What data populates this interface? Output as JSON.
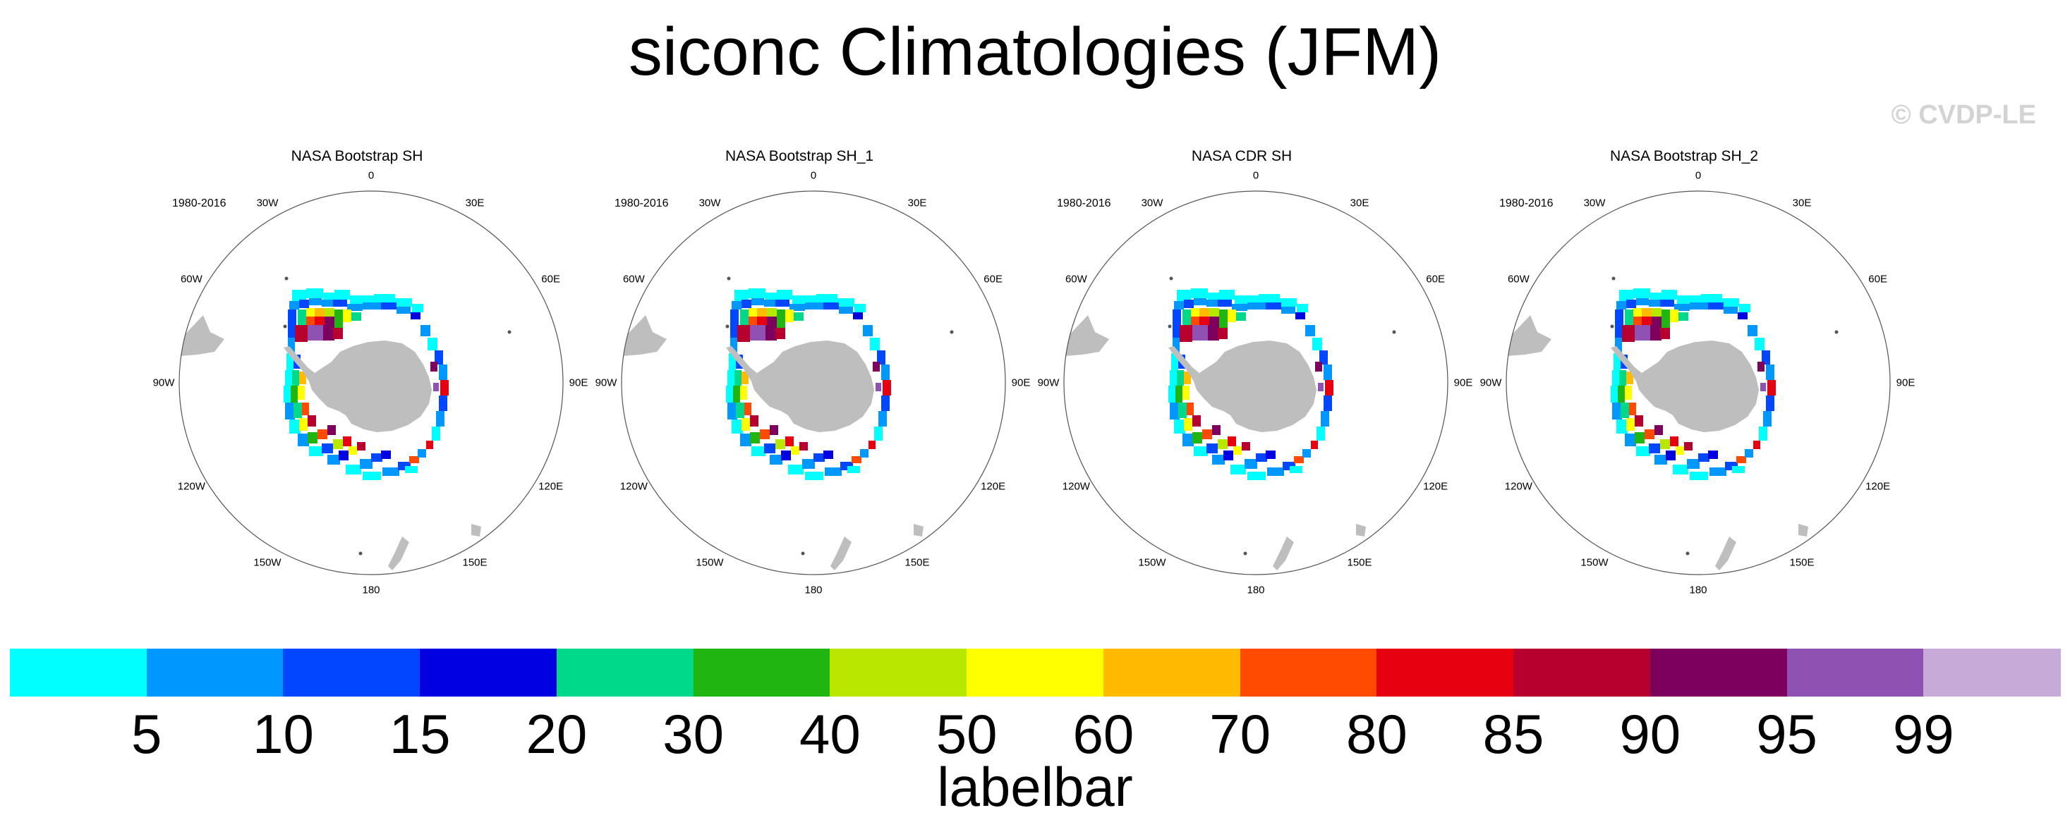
{
  "figure": {
    "title": "siconc Climatologies (JFM)",
    "watermark": "© CVDP-LE",
    "land_color": "#bebebe",
    "ocean_color": "#ffffff"
  },
  "panels": [
    {
      "title": "NASA Bootstrap SH",
      "period": "1980-2016"
    },
    {
      "title": "NASA Bootstrap SH_1",
      "period": "1980-2016"
    },
    {
      "title": "NASA CDR SH",
      "period": "1980-2016"
    },
    {
      "title": "NASA Bootstrap SH_2",
      "period": "1980-2016"
    }
  ],
  "lon_labels": {
    "l0": "0",
    "l30e": "30E",
    "l60e": "60E",
    "l90e": "90E",
    "l120e": "120E",
    "l150e": "150E",
    "l180": "180",
    "l150w": "150W",
    "l120w": "120W",
    "l90w": "90W",
    "l60w": "60W",
    "l30w": "30W"
  },
  "chart_data": {
    "type": "heatmap",
    "projection": "south polar stereographic",
    "variable": "siconc",
    "season": "JFM",
    "title": "siconc Climatologies (JFM)",
    "panel_titles": [
      "NASA Bootstrap SH",
      "NASA Bootstrap SH_1",
      "NASA CDR SH",
      "NASA Bootstrap SH_2"
    ],
    "period": "1980-2016",
    "colorbar": {
      "label": "labelbar",
      "levels": [
        5,
        10,
        15,
        20,
        30,
        40,
        50,
        60,
        70,
        80,
        85,
        90,
        95,
        99
      ],
      "colors": [
        "#00ffff",
        "#0098ff",
        "#0047ff",
        "#0000e0",
        "#00d88a",
        "#20b510",
        "#b8e800",
        "#ffff00",
        "#ffbb00",
        "#ff4a00",
        "#e70010",
        "#b8002e",
        "#7e005e",
        "#8f52b3",
        "#c8aad8"
      ]
    }
  }
}
